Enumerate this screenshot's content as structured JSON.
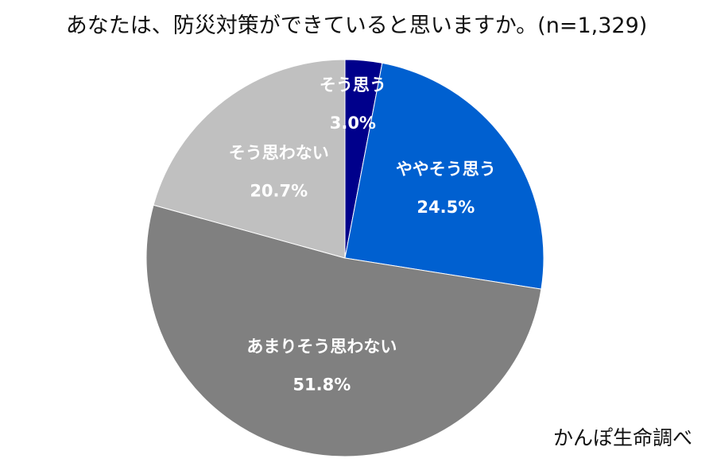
{
  "chart_data": {
    "type": "pie",
    "title": "あなたは、防災対策ができていると思いますか。(n=1,329)",
    "slices": [
      {
        "label": "そう思う",
        "value": 3.0,
        "value_label": "3.0%",
        "color": "#00008b"
      },
      {
        "label": "ややそう思う",
        "value": 24.5,
        "value_label": "24.5%",
        "color": "#0060d0"
      },
      {
        "label": "あまりそう思わない",
        "value": 51.8,
        "value_label": "51.8%",
        "color": "#808080"
      },
      {
        "label": "そう思わない",
        "value": 20.7,
        "value_label": "20.7%",
        "color": "#c0c0c0"
      }
    ],
    "start_angle_deg": 0,
    "direction": "clockwise",
    "legend": "none",
    "data_labels": "inside"
  },
  "source": "かんぽ生命調べ"
}
